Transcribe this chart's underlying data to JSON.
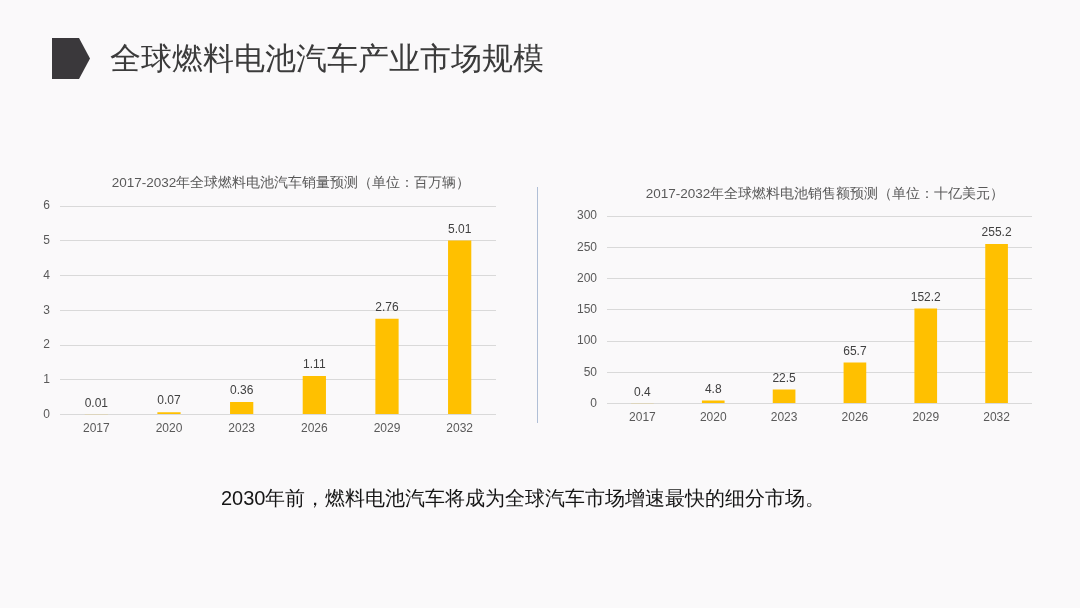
{
  "chart_data": [
    {
      "type": "other",
      "title": "全球燃料电池汽车产业市场规模"
    },
    {
      "type": "bar",
      "title": "2017-2032年全球燃料电池汽车销量预测（单位：百万辆）",
      "categories": [
        "2017",
        "2020",
        "2023",
        "2026",
        "2029",
        "2032"
      ],
      "values": [
        0.01,
        0.07,
        0.36,
        1.11,
        2.76,
        5.01
      ],
      "color": "#ffc000",
      "ylim": [
        0,
        6
      ],
      "yticks": [
        0,
        1,
        2,
        3,
        4,
        5,
        6
      ],
      "grid": "y",
      "data_labels": true
    },
    {
      "type": "bar",
      "title": "2017-2032年全球燃料电池销售额预测（单位：十亿美元）",
      "categories": [
        "2017",
        "2020",
        "2023",
        "2026",
        "2029",
        "2032"
      ],
      "values": [
        0.4,
        4.8,
        22.5,
        65.7,
        152.2,
        255.2
      ],
      "color": "#ffc000",
      "ylim": [
        0,
        300
      ],
      "yticks": [
        0,
        50,
        100,
        150,
        200,
        250,
        300
      ],
      "grid": "y",
      "data_labels": true
    },
    {
      "type": "other",
      "annotations": [
        "2030年前，燃料电池汽车将成为全球汽车市场增速最快的细分市场。"
      ]
    }
  ]
}
